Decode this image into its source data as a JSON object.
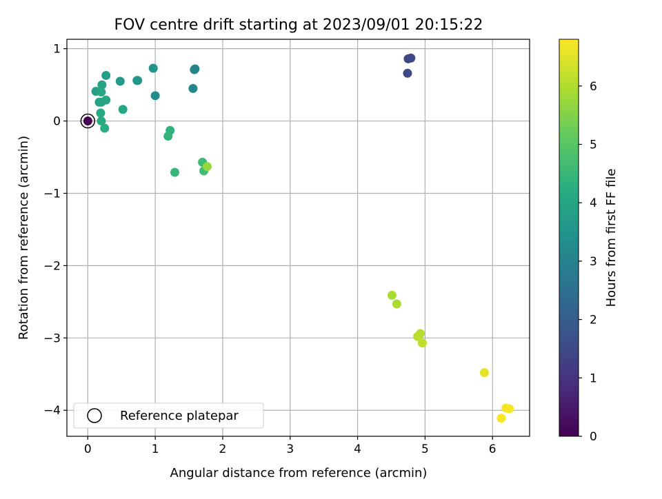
{
  "chart_data": {
    "type": "scatter",
    "title": "FOV centre drift starting at 2023/09/01 20:15:22",
    "xlabel": "Angular distance from reference (arcmin)",
    "ylabel": "Rotation from reference (arcmin)",
    "xlim": [
      -0.31,
      6.55
    ],
    "ylim": [
      -4.36,
      1.13
    ],
    "xticks": [
      0,
      1,
      2,
      3,
      4,
      5,
      6
    ],
    "yticks": [
      -4,
      -3,
      -2,
      -1,
      0,
      1
    ],
    "grid": true,
    "legend": {
      "placement": "lower-left",
      "entries": [
        {
          "label": "Reference platepar",
          "marker": "open-circle"
        }
      ]
    },
    "reference_point": {
      "x": 0,
      "y": 0
    },
    "colorbar": {
      "label": "Hours from first FF file",
      "colormap": "viridis",
      "range": [
        0,
        6.8
      ],
      "ticks": [
        0,
        1,
        2,
        3,
        4,
        5,
        6
      ]
    },
    "points": [
      {
        "x": 0.0,
        "y": 0.0,
        "t": 0.0
      },
      {
        "x": 4.75,
        "y": 0.86,
        "t": 1.4
      },
      {
        "x": 4.79,
        "y": 0.87,
        "t": 1.45
      },
      {
        "x": 4.74,
        "y": 0.66,
        "t": 1.5
      },
      {
        "x": 0.97,
        "y": 0.73,
        "t": 3.5
      },
      {
        "x": 0.73,
        "y": 0.56,
        "t": 3.55
      },
      {
        "x": 0.74,
        "y": 0.56,
        "t": 3.6
      },
      {
        "x": 1.58,
        "y": 0.71,
        "t": 3.0
      },
      {
        "x": 1.59,
        "y": 0.72,
        "t": 3.05
      },
      {
        "x": 1.56,
        "y": 0.45,
        "t": 3.1
      },
      {
        "x": 1.0,
        "y": 0.35,
        "t": 3.3
      },
      {
        "x": 0.27,
        "y": 0.63,
        "t": 3.8
      },
      {
        "x": 0.48,
        "y": 0.55,
        "t": 3.7
      },
      {
        "x": 0.21,
        "y": 0.5,
        "t": 3.9
      },
      {
        "x": 0.12,
        "y": 0.41,
        "t": 3.85
      },
      {
        "x": 0.2,
        "y": 0.4,
        "t": 3.95
      },
      {
        "x": 0.17,
        "y": 0.26,
        "t": 3.9
      },
      {
        "x": 0.2,
        "y": 0.26,
        "t": 4.0
      },
      {
        "x": 0.27,
        "y": 0.29,
        "t": 3.95
      },
      {
        "x": 0.52,
        "y": 0.16,
        "t": 4.05
      },
      {
        "x": 0.19,
        "y": 0.11,
        "t": 4.1
      },
      {
        "x": 0.2,
        "y": 0.0,
        "t": 4.15
      },
      {
        "x": 0.25,
        "y": -0.1,
        "t": 4.2
      },
      {
        "x": 1.22,
        "y": -0.13,
        "t": 4.35
      },
      {
        "x": 1.19,
        "y": -0.21,
        "t": 4.4
      },
      {
        "x": 1.29,
        "y": -0.71,
        "t": 4.5
      },
      {
        "x": 1.7,
        "y": -0.57,
        "t": 4.6
      },
      {
        "x": 1.72,
        "y": -0.69,
        "t": 4.65
      },
      {
        "x": 1.77,
        "y": -0.63,
        "t": 5.7
      },
      {
        "x": 4.51,
        "y": -2.41,
        "t": 5.9
      },
      {
        "x": 4.58,
        "y": -2.53,
        "t": 5.95
      },
      {
        "x": 4.93,
        "y": -2.94,
        "t": 6.05
      },
      {
        "x": 4.89,
        "y": -2.98,
        "t": 6.1
      },
      {
        "x": 4.96,
        "y": -3.07,
        "t": 6.15
      },
      {
        "x": 5.88,
        "y": -3.48,
        "t": 6.55
      },
      {
        "x": 6.2,
        "y": -3.97,
        "t": 6.7
      },
      {
        "x": 6.25,
        "y": -3.98,
        "t": 6.72
      },
      {
        "x": 6.13,
        "y": -4.11,
        "t": 6.75
      }
    ]
  }
}
